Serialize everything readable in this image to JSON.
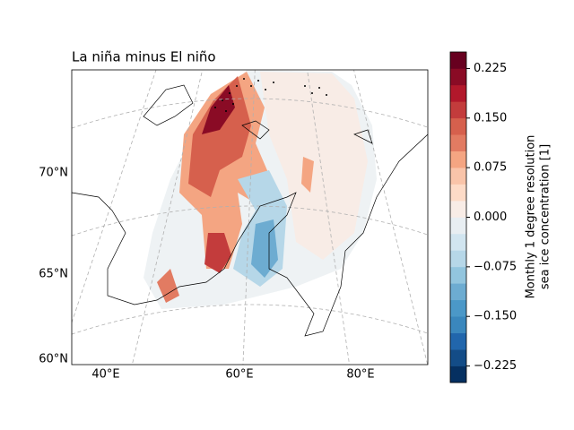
{
  "chart_data": {
    "type": "map",
    "title": "La niña minus El niño",
    "lat_labels": [
      "70°N",
      "65°N",
      "60°N"
    ],
    "lon_labels": [
      "40°E",
      "60°E",
      "80°E"
    ],
    "colorbar_label": [
      "Monthly 1 degree resolution",
      "sea ice concentration [1]"
    ],
    "ylim": [
      -0.25,
      0.25
    ],
    "yticks": [
      {
        "value": -0.225,
        "label": "−0.225"
      },
      {
        "value": -0.15,
        "label": "−0.150"
      },
      {
        "value": -0.075,
        "label": "−0.075"
      },
      {
        "value": 0,
        "label": "0.000"
      },
      {
        "value": 0.075,
        "label": "0.075"
      },
      {
        "value": 0.15,
        "label": "0.150"
      },
      {
        "value": 0.225,
        "label": "0.225"
      }
    ],
    "colors": [
      "#053061",
      "#134c87",
      "#2166ac",
      "#3a87bd",
      "#4b98c8",
      "#6dacd1",
      "#92c5de",
      "#b6d7e8",
      "#d1e5f0",
      "#e8eef2",
      "#f8ece6",
      "#fddbc7",
      "#f9c4a9",
      "#f4a582",
      "#e27b62",
      "#d6604d",
      "#c33c3c",
      "#b2182b",
      "#8a0b25",
      "#67001f"
    ]
  }
}
